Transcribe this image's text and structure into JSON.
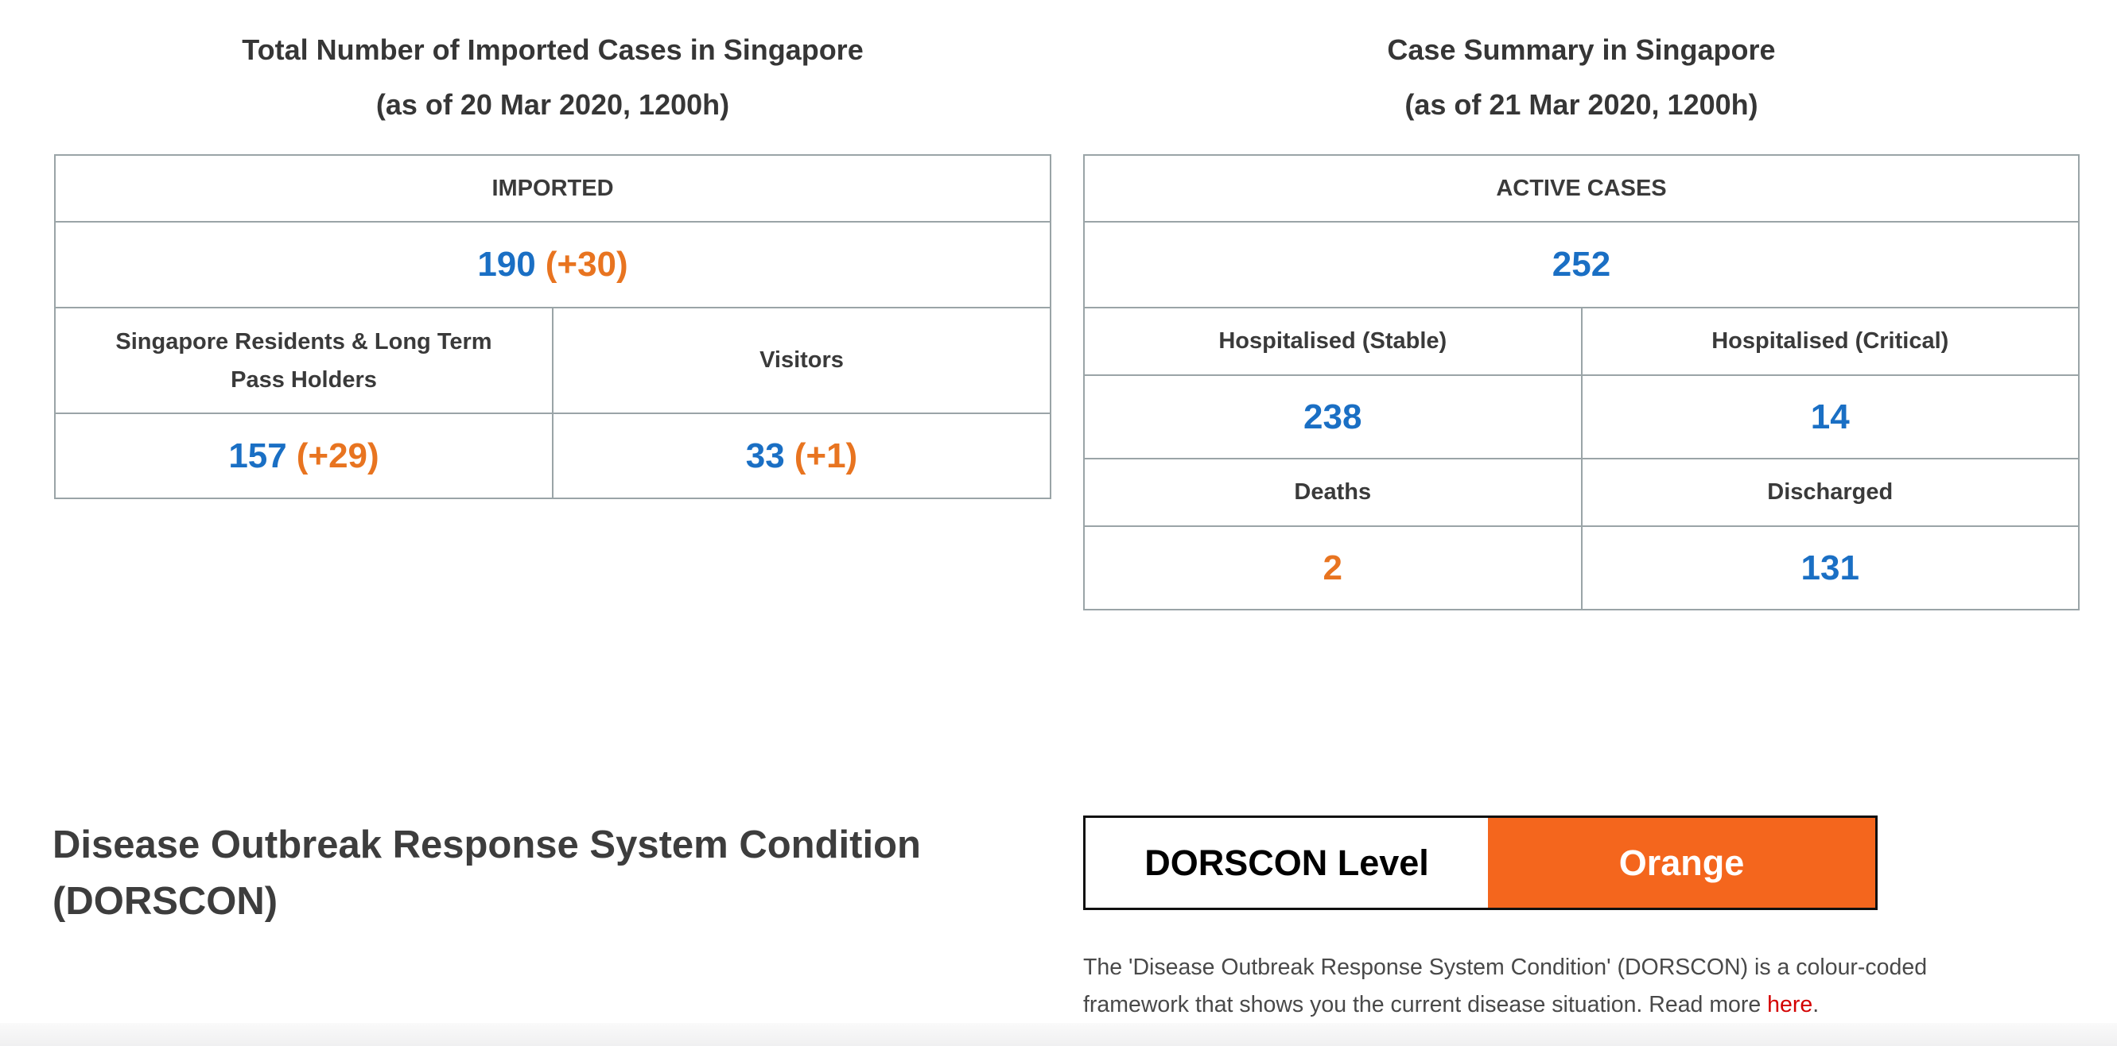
{
  "imported": {
    "title": "Total Number of Imported Cases in Singapore",
    "subtitle": "(as of 20 Mar 2020, 1200h)",
    "table": {
      "header": "IMPORTED",
      "total": {
        "value": "190",
        "delta": "(+30)"
      },
      "columns": [
        {
          "label": "Singapore Residents & Long Term Pass Holders",
          "value": "157",
          "delta": "(+29)"
        },
        {
          "label": "Visitors",
          "value": "33",
          "delta": "(+1)"
        }
      ]
    }
  },
  "summary": {
    "title": "Case Summary in Singapore",
    "subtitle": "(as of 21 Mar 2020, 1200h)",
    "table": {
      "header": "ACTIVE CASES",
      "active": "252",
      "cells": [
        {
          "label": "Hospitalised (Stable)",
          "value": "238"
        },
        {
          "label": "Hospitalised (Critical)",
          "value": "14"
        },
        {
          "label": "Deaths",
          "value": "2"
        },
        {
          "label": "Discharged",
          "value": "131"
        }
      ]
    }
  },
  "dorscon": {
    "heading_line1": "Disease Outbreak Response System Condition",
    "heading_line2": "(DORSCON)",
    "level_label": "DORSCON Level",
    "level_value": "Orange",
    "description": {
      "line1": "The 'Disease Outbreak Response System Condition' (DORSCON) is a colour-coded",
      "line2_before_link": "framework that shows you the current disease situation. Read more ",
      "link_text": "here",
      "suffix": "."
    }
  },
  "colors": {
    "value_blue": "#1a6fc4",
    "value_orange": "#e87420",
    "dorscon_box_orange": "#f4661d",
    "table_border_gray": "#9aa4a7",
    "link_red": "#d40000"
  }
}
